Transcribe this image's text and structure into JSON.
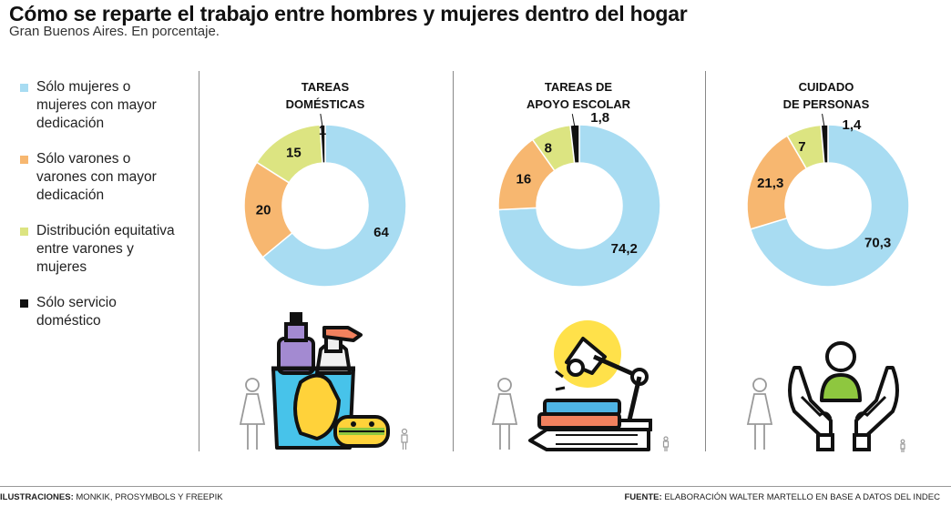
{
  "header": {
    "title": "Cómo se reparte el trabajo entre hombres y mujeres dentro del hogar",
    "subtitle": "Gran Buenos Aires. En porcentaje."
  },
  "legend": [
    {
      "label": "Sólo mujeres o mujeres con mayor dedicación",
      "color": "#a8dcf2"
    },
    {
      "label": "Sólo varones o varones con mayor dedicación",
      "color": "#f7b770"
    },
    {
      "label": "Distribución equitativa entre varones y mujeres",
      "color": "#dce481"
    },
    {
      "label": "Sólo servicio doméstico",
      "color": "#111111"
    }
  ],
  "chart_data": [
    {
      "type": "pie",
      "title": "TAREAS DOMÉSTICAS",
      "title_lines": [
        "TAREAS",
        "DOMÉSTICAS"
      ],
      "categories": [
        "Sólo mujeres o mujeres con mayor dedicación",
        "Sólo varones o varones con mayor dedicación",
        "Distribución equitativa entre varones y mujeres",
        "Sólo servicio doméstico"
      ],
      "values": [
        64,
        20,
        15,
        1
      ],
      "value_labels": [
        "64",
        "20",
        "15",
        "1"
      ],
      "colors": [
        "#a8dcf2",
        "#f7b770",
        "#dce481",
        "#111111"
      ],
      "icon": "cleaning-products-icon"
    },
    {
      "type": "pie",
      "title": "TAREAS DE APOYO ESCOLAR",
      "title_lines": [
        "TAREAS DE",
        "APOYO ESCOLAR"
      ],
      "categories": [
        "Sólo mujeres o mujeres con mayor dedicación",
        "Sólo varones o varones con mayor dedicación",
        "Distribución equitativa entre varones y mujeres",
        "Sólo servicio doméstico"
      ],
      "values": [
        74.2,
        16,
        8,
        1.8
      ],
      "value_labels": [
        "74,2",
        "16",
        "8",
        "1,8"
      ],
      "colors": [
        "#a8dcf2",
        "#f7b770",
        "#dce481",
        "#111111"
      ],
      "icon": "books-lamp-icon"
    },
    {
      "type": "pie",
      "title": "CUIDADO DE PERSONAS",
      "title_lines": [
        "CUIDADO",
        "DE PERSONAS"
      ],
      "categories": [
        "Sólo mujeres o mujeres con mayor dedicación",
        "Sólo varones o varones con mayor dedicación",
        "Distribución equitativa entre varones y mujeres",
        "Sólo servicio doméstico"
      ],
      "values": [
        70.3,
        21.3,
        7,
        1.4
      ],
      "value_labels": [
        "70,3",
        "21,3",
        "7",
        "1,4"
      ],
      "colors": [
        "#a8dcf2",
        "#f7b770",
        "#dce481",
        "#111111"
      ],
      "icon": "caring-hands-icon"
    }
  ],
  "footer": {
    "left_label": "ILUSTRACIONES:",
    "left_text": "MONKIK, PROSYMBOLS Y FREEPIK",
    "right_label": "FUENTE:",
    "right_text": "ELABORACIÓN WALTER MARTELLO EN BASE A DATOS DEL INDEC"
  }
}
